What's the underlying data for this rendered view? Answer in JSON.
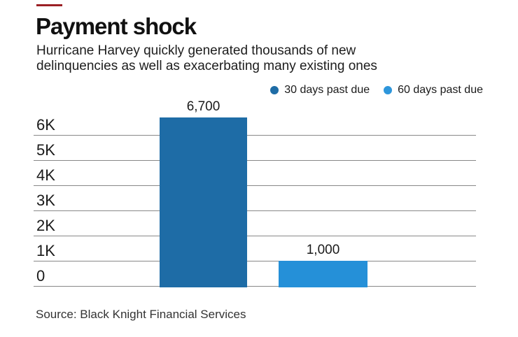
{
  "page": {
    "accent_color": "#9b2025"
  },
  "header": {
    "title": "Payment shock",
    "subtitle_lines": [
      "Hurricane Harvey quickly generated thousands of new",
      "delinquencies as well as exacerbating many existing ones"
    ]
  },
  "legend": {
    "items": [
      {
        "label": "30 days past due",
        "color": "#1e6ca6"
      },
      {
        "label": "60 days past due",
        "color": "#2e96db"
      }
    ]
  },
  "chart_data": {
    "type": "bar",
    "title": "Payment shock",
    "subtitle": "Hurricane Harvey quickly generated thousands of new delinquencies as well as exacerbating many existing ones",
    "categories": [
      "30 days past due",
      "60 days past due"
    ],
    "series": [
      {
        "name": "30 days past due",
        "value": 6700,
        "value_label": "6,700",
        "color": "#1e6ca6"
      },
      {
        "name": "60 days past due",
        "value": 1000,
        "value_label": "1,000",
        "color": "#2590d8"
      }
    ],
    "yticks": [
      {
        "label": "6K",
        "value": 6000
      },
      {
        "label": "5K",
        "value": 5000
      },
      {
        "label": "4K",
        "value": 4000
      },
      {
        "label": "3K",
        "value": 3000
      },
      {
        "label": "2K",
        "value": 2000
      },
      {
        "label": "1K",
        "value": 1000
      },
      {
        "label": "0",
        "value": 0
      }
    ],
    "ylim": [
      0,
      7200
    ],
    "xlabel": "",
    "ylabel": "",
    "grid": true,
    "legend_position": "top-right"
  },
  "footer": {
    "source": "Source: Black Knight Financial Services"
  }
}
